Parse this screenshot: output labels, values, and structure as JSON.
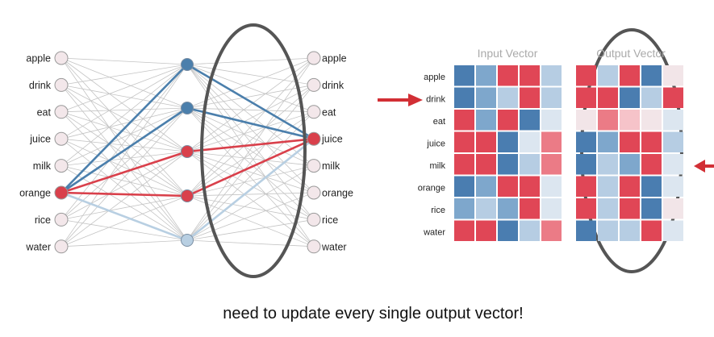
{
  "network": {
    "input_words": [
      "apple",
      "drink",
      "eat",
      "juice",
      "milk",
      "orange",
      "rice",
      "water"
    ],
    "output_words": [
      "apple",
      "drink",
      "eat",
      "juice",
      "milk",
      "orange",
      "rice",
      "water"
    ],
    "hidden_node_colors": [
      "#4b7fac",
      "#4b7fac",
      "#d9404b",
      "#d9404b",
      "#b8cfe2"
    ],
    "active_input_index": 5,
    "active_output_index": 3,
    "colors": {
      "node_fill": "#f3e7ea",
      "node_stroke": "#999999",
      "active_fill": "#d9404b",
      "edge_gray": "#c4c4c4",
      "edge_blue": "#4b7fac",
      "edge_red": "#d9404b",
      "edge_lightblue": "#b8cfe2",
      "ellipse": "#555555"
    }
  },
  "heatmaps": {
    "row_labels": [
      "apple",
      "drink",
      "eat",
      "juice",
      "milk",
      "orange",
      "rice",
      "water"
    ],
    "input_title": "Input Vector",
    "output_title": "Output Vector",
    "palette": {
      "R": "#e04656",
      "r": "#eb7b86",
      "p": "#f6c3c9",
      "w": "#f2e5e8",
      "B": "#4a7db0",
      "b": "#7ea7cc",
      "L": "#b6cde3",
      "l": "#dce6f0"
    },
    "input_cells": [
      [
        "B",
        "b",
        "R",
        "R",
        "L"
      ],
      [
        "B",
        "b",
        "L",
        "R",
        "L"
      ],
      [
        "R",
        "b",
        "R",
        "B",
        "l"
      ],
      [
        "R",
        "R",
        "B",
        "l",
        "r"
      ],
      [
        "R",
        "R",
        "B",
        "L",
        "r"
      ],
      [
        "B",
        "b",
        "R",
        "R",
        "l"
      ],
      [
        "b",
        "L",
        "b",
        "R",
        "l"
      ],
      [
        "R",
        "R",
        "B",
        "L",
        "r"
      ]
    ],
    "output_cells": [
      [
        "R",
        "L",
        "R",
        "B",
        "w"
      ],
      [
        "R",
        "R",
        "B",
        "L",
        "R"
      ],
      [
        "w",
        "r",
        "p",
        "w",
        "l"
      ],
      [
        "B",
        "b",
        "R",
        "R",
        "L"
      ],
      [
        "B",
        "L",
        "b",
        "R",
        "l"
      ],
      [
        "R",
        "L",
        "R",
        "B",
        "l"
      ],
      [
        "R",
        "L",
        "R",
        "B",
        "w"
      ],
      [
        "B",
        "L",
        "L",
        "R",
        "l"
      ]
    ]
  },
  "caption": "need to update every single output vector!"
}
